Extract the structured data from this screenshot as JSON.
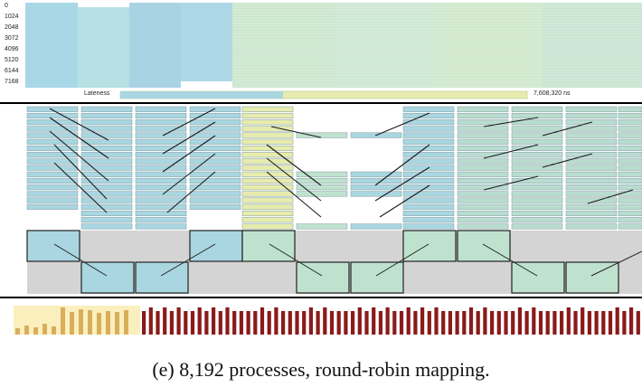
{
  "top_panel": {
    "y_ticks": [
      "0",
      "1024",
      "2048",
      "3072",
      "4096",
      "5120",
      "6144",
      "7168"
    ]
  },
  "lateness": {
    "label": "Lateness",
    "value": "7,608,320 ns"
  },
  "caption": "(e) 8,192 processes, round-robin mapping.",
  "colors": {
    "blue": "#a9d6e0",
    "green": "#bfe2cf",
    "yellow": "#e7ecae",
    "gray_band": "#d4d4d4",
    "dark_red": "#8b1a1a",
    "gold": "#d8ae5c"
  }
}
